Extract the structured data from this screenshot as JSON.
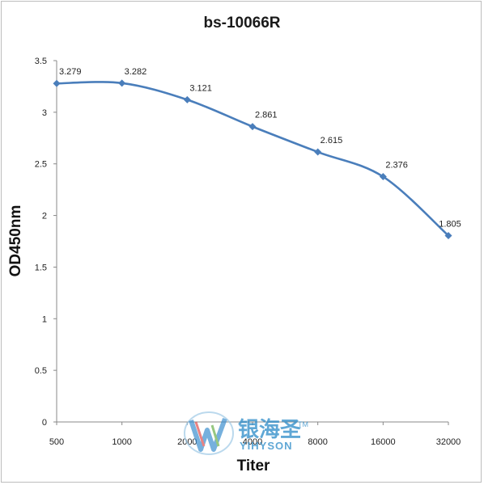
{
  "chart_data": {
    "type": "line",
    "title": "bs-10066R",
    "xlabel": "Titer",
    "ylabel": "OD450nm",
    "categories": [
      "500",
      "1000",
      "2000",
      "4000",
      "8000",
      "16000",
      "32000"
    ],
    "values": [
      3.279,
      3.282,
      3.121,
      2.861,
      2.615,
      2.376,
      1.805
    ],
    "data_labels": [
      "3.279",
      "3.282",
      "3.121",
      "2.861",
      "2.615",
      "2.376",
      "1.805"
    ],
    "y_ticks": [
      "0",
      "0.5",
      "1",
      "1.5",
      "2",
      "2.5",
      "3",
      "3.5"
    ],
    "ylim": [
      0,
      3.5
    ],
    "grid": false,
    "legend": "none",
    "line_color": "#4a7ebb",
    "marker": "diamond"
  },
  "watermark": {
    "cn_text": "银海圣",
    "en_text": "YIHYSON",
    "tm": "TM"
  }
}
